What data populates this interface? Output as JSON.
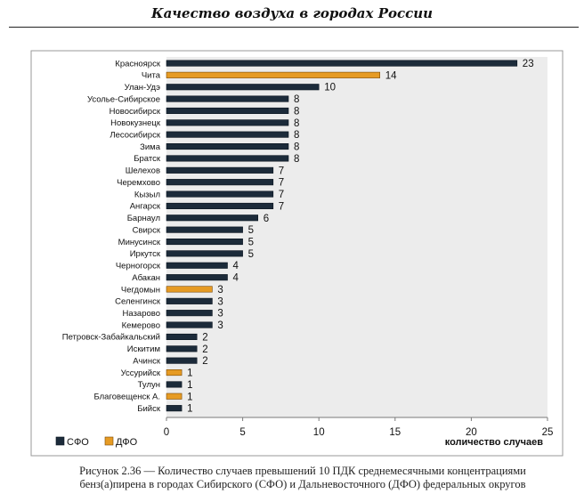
{
  "page_header": "Качество воздуха в городах России",
  "caption_line1": "Рисунок 2.36 — Количество случаев превышений 10 ПДК среднемесячными концентрациями",
  "caption_line2": "бенз(а)пирена в городах Сибирского (СФО) и Дальневосточного (ДФО) федеральных округов",
  "chart_data": {
    "type": "bar",
    "orientation": "horizontal",
    "title": "",
    "xlabel": "количество случаев",
    "ylabel": "",
    "xlim": [
      0,
      25
    ],
    "xticks": [
      0,
      5,
      10,
      15,
      20,
      25
    ],
    "categories": [
      "Красноярск",
      "Чита",
      "Улан-Удэ",
      "Усолье-Сибирское",
      "Новосибирск",
      "Новокузнецк",
      "Лесосибирск",
      "Зима",
      "Братск",
      "Шелехов",
      "Черемхово",
      "Кызыл",
      "Ангарск",
      "Барнаул",
      "Свирск",
      "Минусинск",
      "Иркутск",
      "Черногорск",
      "Абакан",
      "Чегдомын",
      "Селенгинск",
      "Назарово",
      "Кемерово",
      "Петровск-Забайкальский",
      "Искитим",
      "Ачинск",
      "Уссурийск",
      "Тулун",
      "Благовещенск А.",
      "Бийск"
    ],
    "values": [
      23,
      14,
      10,
      8,
      8,
      8,
      8,
      8,
      8,
      7,
      7,
      7,
      7,
      6,
      5,
      5,
      5,
      4,
      4,
      3,
      3,
      3,
      3,
      2,
      2,
      2,
      1,
      1,
      1,
      1
    ],
    "groups": [
      "СФО",
      "ДФО",
      "СФО",
      "СФО",
      "СФО",
      "СФО",
      "СФО",
      "СФО",
      "СФО",
      "СФО",
      "СФО",
      "СФО",
      "СФО",
      "СФО",
      "СФО",
      "СФО",
      "СФО",
      "СФО",
      "СФО",
      "ДФО",
      "СФО",
      "СФО",
      "СФО",
      "СФО",
      "СФО",
      "СФО",
      "ДФО",
      "СФО",
      "ДФО",
      "СФО"
    ],
    "legend": [
      {
        "name": "СФО",
        "color": "#1c2b3a"
      },
      {
        "name": "ДФО",
        "color": "#e69b24"
      }
    ],
    "legend_position": "bottom-left",
    "plot_background": "#ececec",
    "grid": false
  }
}
